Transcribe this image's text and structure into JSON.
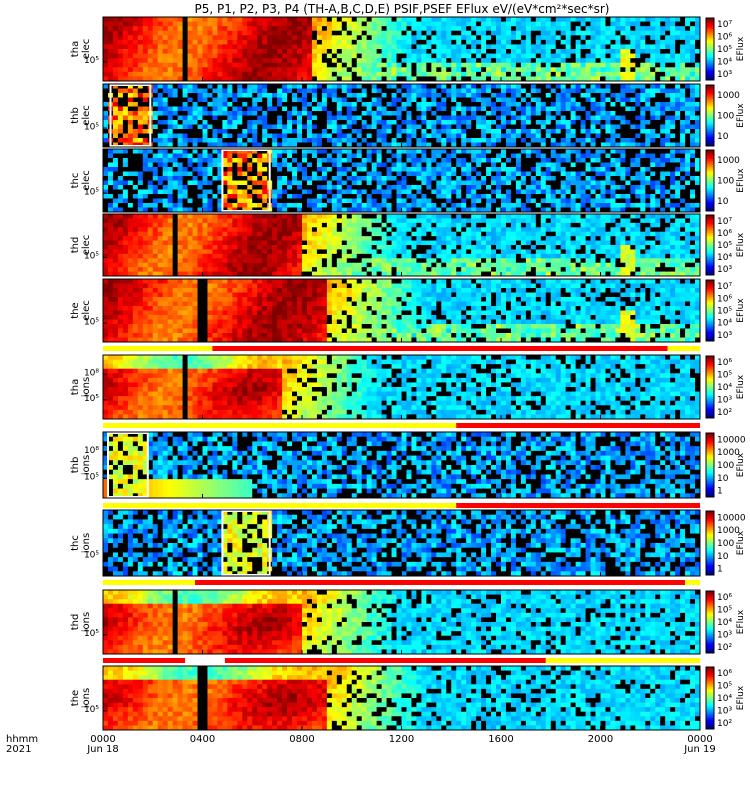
{
  "chart_data": {
    "type": "heatmap",
    "title": "P5, P1, P2, P3, P4 (TH-A,B,C,D,E) PSIF,PSEF EFlux eV/(eV*cm²*sec*sr)",
    "x_axis": {
      "prefix_label": "hhmm",
      "prefix_year": "2021",
      "range_hours": [
        0,
        24
      ],
      "ticks": [
        {
          "t": 0,
          "label": "0000",
          "date": "Jun 18"
        },
        {
          "t": 4,
          "label": "0400",
          "date": ""
        },
        {
          "t": 8,
          "label": "0800",
          "date": ""
        },
        {
          "t": 12,
          "label": "1200",
          "date": ""
        },
        {
          "t": 16,
          "label": "1600",
          "date": ""
        },
        {
          "t": 20,
          "label": "2000",
          "date": ""
        },
        {
          "t": 24,
          "label": "0000",
          "date": "Jun 19"
        }
      ]
    },
    "colorbar_unit": "EFlux",
    "panels": [
      {
        "probe": "tha",
        "species": "elec",
        "label": [
          "tha",
          "elec"
        ],
        "ytick": "10⁵",
        "cbar": [
          "10⁷",
          "10⁶",
          "10⁵",
          "10⁴",
          "10³"
        ],
        "kind": "full",
        "dips": [
          3.3
        ],
        "quiet_after": 8.5,
        "burst": null
      },
      {
        "probe": "thb",
        "species": "elec",
        "label": [
          "thb",
          "elec"
        ],
        "ytick": "10⁵",
        "cbar": [
          "1000",
          "100",
          "10"
        ],
        "kind": "noisy",
        "dips": [],
        "quiet_after": 0,
        "burst": [
          0.3,
          1.9
        ]
      },
      {
        "probe": "thc",
        "species": "elec",
        "label": [
          "thc",
          "elec"
        ],
        "ytick": "10⁵",
        "cbar": [
          "1000",
          "100",
          "10"
        ],
        "kind": "noisy",
        "dips": [],
        "quiet_after": 0,
        "burst": [
          4.8,
          6.7
        ]
      },
      {
        "probe": "thd",
        "species": "elec",
        "label": [
          "thd",
          "elec"
        ],
        "ytick": "10⁵",
        "cbar": [
          "10⁷",
          "10⁶",
          "10⁵",
          "10⁴",
          "10³"
        ],
        "kind": "full",
        "dips": [
          2.9
        ],
        "quiet_after": 8.0,
        "burst": null
      },
      {
        "probe": "the",
        "species": "elec",
        "label": [
          "the",
          "elec"
        ],
        "ytick": "10⁵",
        "cbar": [
          "10⁷",
          "10⁶",
          "10⁵",
          "10⁴",
          "10³"
        ],
        "kind": "full",
        "dips": [
          4.0
        ],
        "quiet_after": 9.0,
        "burst": null
      },
      {
        "probe": "tha",
        "species": "ions",
        "label": [
          "tha",
          "ions"
        ],
        "ytick": "10⁵",
        "ytick2": "10⁸",
        "cbar": [
          "10⁶",
          "10⁵",
          "10⁴",
          "10³",
          "10²"
        ],
        "kind": "ion",
        "dips": [
          3.3
        ],
        "quiet_after": 7.2,
        "burst": null
      },
      {
        "probe": "thb",
        "species": "ions",
        "label": [
          "thb",
          "ions"
        ],
        "ytick": "10⁵",
        "ytick2": "10⁸",
        "cbar": [
          "10000",
          "1000",
          "100",
          "10",
          "1"
        ],
        "kind": "noisy",
        "dips": [],
        "quiet_after": 0,
        "burst": [
          0.2,
          1.8
        ]
      },
      {
        "probe": "thc",
        "species": "ions",
        "label": [
          "thc",
          "ions"
        ],
        "ytick": "10⁵",
        "cbar": [
          "10000",
          "1000",
          "100",
          "10",
          "1"
        ],
        "kind": "noisy",
        "dips": [],
        "quiet_after": 0,
        "burst": [
          4.8,
          6.7
        ]
      },
      {
        "probe": "thd",
        "species": "ions",
        "label": [
          "thd",
          "ions"
        ],
        "ytick": "10⁵",
        "cbar": [
          "10⁶",
          "10⁵",
          "10⁴",
          "10³",
          "10²"
        ],
        "kind": "ion",
        "dips": [
          2.9
        ],
        "quiet_after": 8.0,
        "burst": null
      },
      {
        "probe": "the",
        "species": "ions",
        "label": [
          "the",
          "ions"
        ],
        "ytick": "10⁵",
        "cbar": [
          "10⁶",
          "10⁵",
          "10⁴",
          "10³",
          "10²"
        ],
        "kind": "ion",
        "dips": [
          4.0
        ],
        "quiet_after": 9.0,
        "burst": null
      }
    ],
    "mode_bars": [
      {
        "after_panel": 4,
        "segments": [
          {
            "from": 0,
            "to": 4.4,
            "color": "#ffff00"
          },
          {
            "from": 4.4,
            "to": 22.7,
            "color": "#ff0000"
          },
          {
            "from": 22.7,
            "to": 24,
            "color": "#ffff00"
          }
        ]
      },
      {
        "after_panel": 5,
        "segments": [
          {
            "from": 0,
            "to": 14.2,
            "color": "#ffff00"
          },
          {
            "from": 14.2,
            "to": 24,
            "color": "#ff0000"
          }
        ]
      },
      {
        "after_panel": 6,
        "segments": [
          {
            "from": 0,
            "to": 14.2,
            "color": "#ffff00"
          },
          {
            "from": 14.2,
            "to": 24,
            "color": "#ff0000"
          }
        ]
      },
      {
        "after_panel": 7,
        "segments": [
          {
            "from": 0,
            "to": 3.7,
            "color": "#ffff00"
          },
          {
            "from": 3.7,
            "to": 23.4,
            "color": "#ff0000"
          },
          {
            "from": 23.4,
            "to": 24,
            "color": "#ffff00"
          }
        ]
      },
      {
        "after_panel": 8,
        "segments": [
          {
            "from": 0,
            "to": 3.3,
            "color": "#ff0000"
          },
          {
            "from": 3.3,
            "to": 4.9,
            "color": "#ffffff"
          },
          {
            "from": 4.9,
            "to": 17.8,
            "color": "#ff0000"
          },
          {
            "from": 17.8,
            "to": 24,
            "color": "#ffff00"
          }
        ]
      }
    ]
  }
}
